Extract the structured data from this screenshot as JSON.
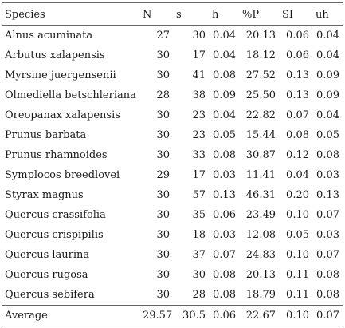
{
  "table": {
    "headers": [
      "Species",
      "N",
      "s",
      "h",
      "%P",
      "SI",
      "uh"
    ],
    "rows": [
      [
        "Alnus acuminata",
        "27",
        "30",
        "0.04",
        "20.13",
        "0.06",
        "0.04"
      ],
      [
        "Arbutus xalapensis",
        "30",
        "17",
        "0.04",
        "18.12",
        "0.06",
        "0.04"
      ],
      [
        "Myrsine juergensenii",
        "30",
        "41",
        "0.08",
        "27.52",
        "0.13",
        "0.09"
      ],
      [
        "Olmediella betschleriana",
        "28",
        "38",
        "0.09",
        "25.50",
        "0.13",
        "0.09"
      ],
      [
        "Oreopanax xalapensis",
        "30",
        "23",
        "0.04",
        "22.82",
        "0.07",
        "0.04"
      ],
      [
        "Prunus barbata",
        "30",
        "23",
        "0.05",
        "15.44",
        "0.08",
        "0.05"
      ],
      [
        "Prunus rhamnoides",
        "30",
        "33",
        "0.08",
        "30.87",
        "0.12",
        "0.08"
      ],
      [
        "Symplocos breedlovei",
        "29",
        "17",
        "0.03",
        "11.41",
        "0.04",
        "0.03"
      ],
      [
        "Styrax magnus",
        "30",
        "57",
        "0.13",
        "46.31",
        "0.20",
        "0.13"
      ],
      [
        "Quercus crassifolia",
        "30",
        "35",
        "0.06",
        "23.49",
        "0.10",
        "0.07"
      ],
      [
        "Quercus crispipilis",
        "30",
        "18",
        "0.03",
        "12.08",
        "0.05",
        "0.03"
      ],
      [
        "Quercus laurina",
        "30",
        "37",
        "0.07",
        "24.83",
        "0.10",
        "0.07"
      ],
      [
        "Quercus rugosa",
        "30",
        "30",
        "0.08",
        "20.13",
        "0.11",
        "0.08"
      ],
      [
        "Quercus sebifera",
        "30",
        "28",
        "0.08",
        "18.79",
        "0.11",
        "0.08"
      ]
    ],
    "average": [
      "Average",
      "29.57",
      "30.5",
      "0.06",
      "22.67",
      "0.10",
      "0.07"
    ]
  }
}
